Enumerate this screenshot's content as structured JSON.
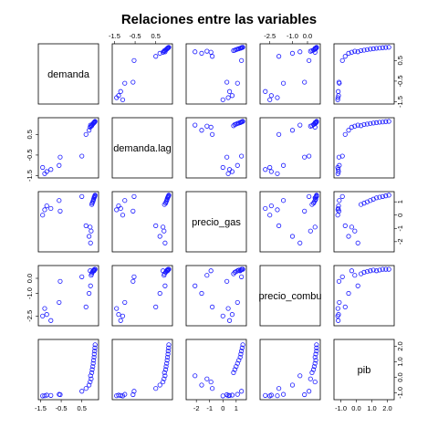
{
  "chart_data": {
    "type": "scatter",
    "subtype": "scatterplot-matrix",
    "title": "Relaciones entre las variables",
    "point_color": "#1a1aff",
    "variables": [
      {
        "name": "demanda",
        "label": "demanda",
        "range": [
          -1.5,
          1.2
        ],
        "ticks": [
          {
            "v": -1.5,
            "t": "-1.5"
          },
          {
            "v": -0.5,
            "t": "-0.5"
          },
          {
            "v": 0.5,
            "t": "0.5"
          }
        ]
      },
      {
        "name": "demanda.lag",
        "label": "demanda.lag",
        "range": [
          -1.5,
          1.2
        ],
        "ticks": [
          {
            "v": -1.5,
            "t": "-1.5"
          },
          {
            "v": -0.5,
            "t": "-0.5"
          },
          {
            "v": 0.5,
            "t": "0.5"
          }
        ]
      },
      {
        "name": "precio_gas",
        "label": "precio_gas",
        "range": [
          -2.6,
          1.6
        ],
        "ticks": [
          {
            "v": -2,
            "t": "-2"
          },
          {
            "v": -1,
            "t": "-1"
          },
          {
            "v": 0,
            "t": "0"
          },
          {
            "v": 1,
            "t": "1"
          }
        ]
      },
      {
        "name": "precio_combu",
        "label": "precio_combu",
        "range": [
          -3.0,
          0.7
        ],
        "ticks": [
          {
            "v": -2.5,
            "t": "-2.5"
          },
          {
            "v": -1.0,
            "t": "-1.0"
          },
          {
            "v": 0.0,
            "t": "0.0"
          }
        ]
      },
      {
        "name": "pib",
        "label": "pib",
        "range": [
          -1.3,
          2.3
        ],
        "ticks": [
          {
            "v": -1.0,
            "t": "-1.0"
          },
          {
            "v": 0.0,
            "t": "0.0"
          },
          {
            "v": 1.0,
            "t": "1.0"
          },
          {
            "v": 2.0,
            "t": "2.0"
          }
        ]
      }
    ],
    "columns": [
      "demanda",
      "demanda.lag",
      "precio_gas",
      "precio_combu",
      "pib"
    ],
    "rows": [
      [
        -1.4,
        -1.1,
        0.0,
        -2.5,
        -1.2
      ],
      [
        -1.3,
        -1.4,
        0.4,
        -2.0,
        -1.19
      ],
      [
        -1.2,
        -1.3,
        0.7,
        -2.4,
        -1.15
      ],
      [
        -1.0,
        -1.2,
        0.5,
        -2.8,
        -1.17
      ],
      [
        -0.6,
        -1.0,
        1.1,
        -1.6,
        -1.1
      ],
      [
        -0.55,
        -0.6,
        0.3,
        -0.2,
        -1.12
      ],
      [
        0.5,
        -0.55,
        1.4,
        0.1,
        -0.9
      ],
      [
        0.7,
        0.5,
        -0.8,
        -1.9,
        -0.72
      ],
      [
        0.85,
        0.7,
        -1.6,
        -1.0,
        -0.5
      ],
      [
        0.9,
        0.85,
        -0.9,
        0.5,
        -0.3
      ],
      [
        0.95,
        0.9,
        -1.2,
        0.2,
        -0.1
      ],
      [
        0.92,
        0.95,
        -2.1,
        -0.5,
        0.1
      ],
      [
        0.98,
        0.92,
        0.8,
        0.3,
        0.3
      ],
      [
        1.0,
        0.98,
        0.9,
        0.4,
        0.5
      ],
      [
        1.03,
        1.0,
        1.0,
        0.45,
        0.7
      ],
      [
        1.05,
        1.03,
        1.1,
        0.5,
        0.9
      ],
      [
        1.07,
        1.05,
        1.2,
        0.55,
        1.1
      ],
      [
        1.09,
        1.07,
        1.3,
        0.5,
        1.3
      ],
      [
        1.1,
        1.09,
        1.35,
        0.55,
        1.5
      ],
      [
        1.12,
        1.1,
        1.4,
        0.6,
        1.7
      ],
      [
        1.13,
        1.12,
        1.45,
        0.6,
        1.9
      ],
      [
        1.14,
        1.13,
        1.5,
        0.6,
        2.1
      ]
    ],
    "grid": false,
    "legend": "none"
  }
}
